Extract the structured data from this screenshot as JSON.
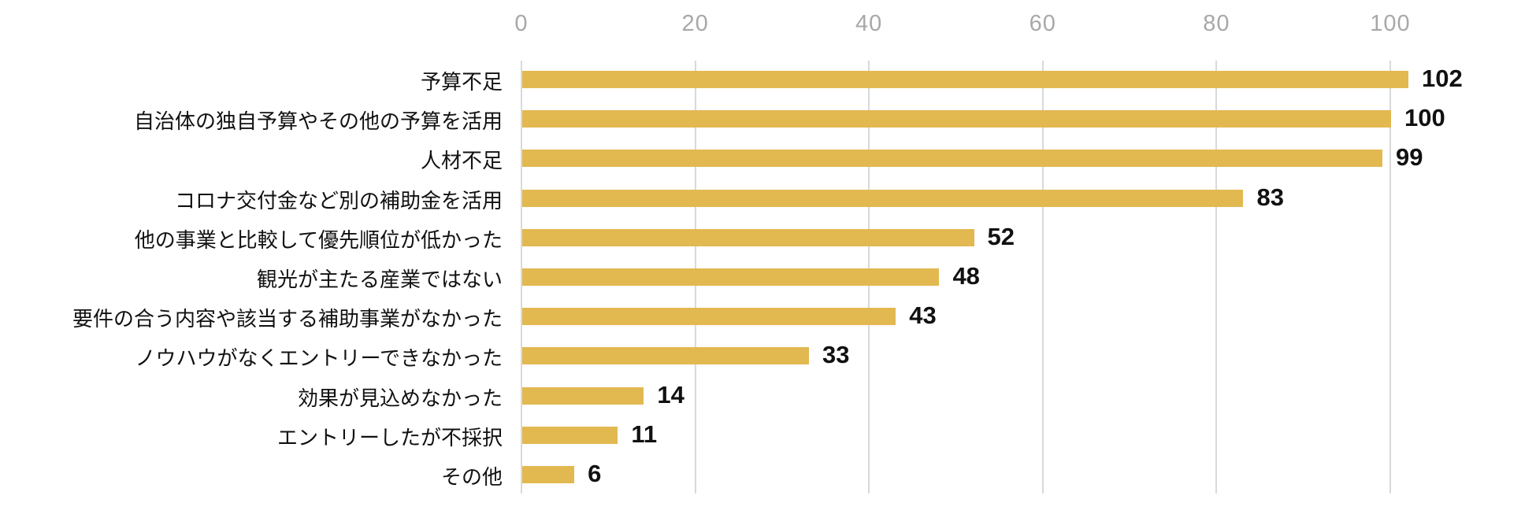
{
  "chart_data": {
    "type": "bar",
    "orientation": "horizontal",
    "title": "",
    "xlabel": "",
    "ylabel": "",
    "categories": [
      "予算不足",
      "自治体の独自予算やその他の予算を活用",
      "人材不足",
      "コロナ交付金など別の補助金を活用",
      "他の事業と比較して優先順位が低かった",
      "観光が主たる産業ではない",
      "要件の合う内容や該当する補助事業がなかった",
      "ノウハウがなくエントリーできなかった",
      "効果が見込めなかった",
      "エントリーしたが不採択",
      "その他"
    ],
    "values": [
      102,
      100,
      99,
      83,
      52,
      48,
      43,
      33,
      14,
      11,
      6
    ],
    "x_ticks": [
      0,
      20,
      40,
      60,
      80,
      100
    ],
    "xlim": [
      0,
      106
    ],
    "grid": "vertical",
    "legend": "none",
    "colors": {
      "bar": "#E2B851",
      "gridline": "#D9D9D9",
      "tick_label": "#A8A8A8",
      "category_label": "#111111",
      "value_label": "#111111",
      "background": "#FFFFFF"
    }
  }
}
